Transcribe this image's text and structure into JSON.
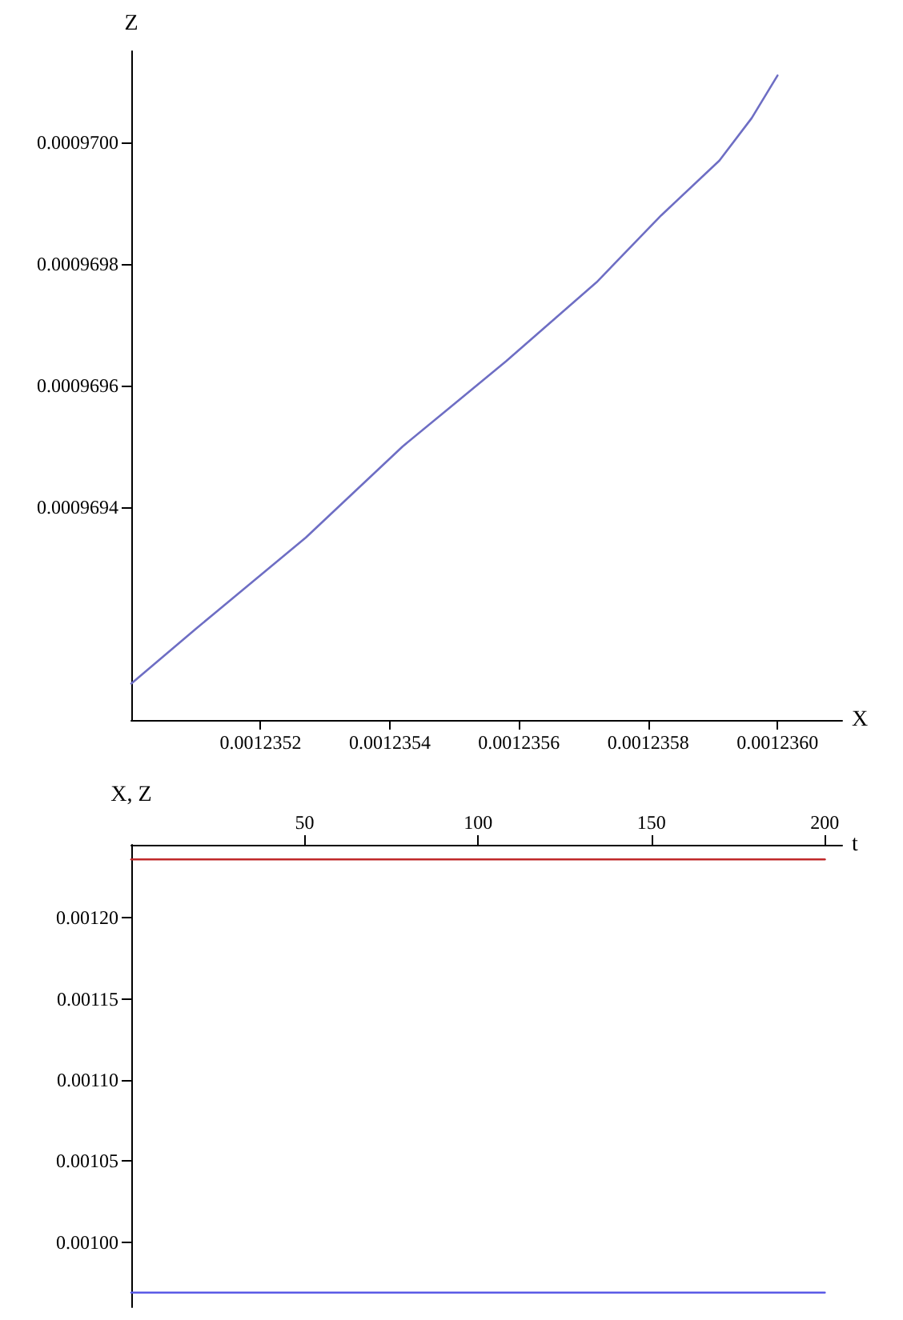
{
  "chart_data": [
    {
      "type": "line",
      "xlabel": "X",
      "ylabel": "Z",
      "series": [
        {
          "color": "#6e6ec4",
          "x": [
            0.001235,
            0.0012351,
            0.00123527,
            0.00123542,
            0.00123558,
            0.00123572,
            0.00123582,
            0.00123591,
            0.00123596,
            0.001236
          ],
          "values": [
            0.00096911,
            0.0009692,
            0.00096935,
            0.0009695,
            0.00096964,
            0.00096977,
            0.00096988,
            0.00096997,
            0.00097004,
            0.00097011
          ]
        }
      ],
      "xlim": [
        0.001235,
        0.0012361
      ],
      "xticks": [
        0.0012352,
        0.0012354,
        0.0012356,
        0.0012358,
        {
          "value": 0.001236,
          "label": "0.0012360"
        }
      ],
      "ylim": [
        0.00096905,
        0.00097015
      ],
      "yticks": [
        0.0009694,
        0.0009696,
        0.0009698,
        {
          "value": 0.00097,
          "label": "0.0009700"
        }
      ],
      "grid": false,
      "marker": "none",
      "line_style": "solid"
    },
    {
      "type": "line",
      "xlabel": "t",
      "ylabel": "X, Z",
      "series": [
        {
          "color": "#c0282a",
          "x": [
            0,
            200
          ],
          "values": [
            0.001236,
            0.001236
          ]
        },
        {
          "color": "#5a5ae6",
          "x": [
            0,
            200
          ],
          "values": [
            0.000969,
            0.000969
          ]
        }
      ],
      "xlim": [
        0,
        205
      ],
      "xticks": [
        50,
        100,
        150,
        200
      ],
      "ylim": [
        0.00096,
        0.001245
      ],
      "yticks": [
        {
          "value": 0.001,
          "label": "0.00100"
        },
        {
          "value": 0.00105,
          "label": "0.00105"
        },
        {
          "value": 0.0011,
          "label": "0.00110"
        },
        {
          "value": 0.00115,
          "label": "0.00115"
        },
        {
          "value": 0.0012,
          "label": "0.00120"
        }
      ],
      "grid": false,
      "marker": "none",
      "line_style": "solid"
    }
  ]
}
